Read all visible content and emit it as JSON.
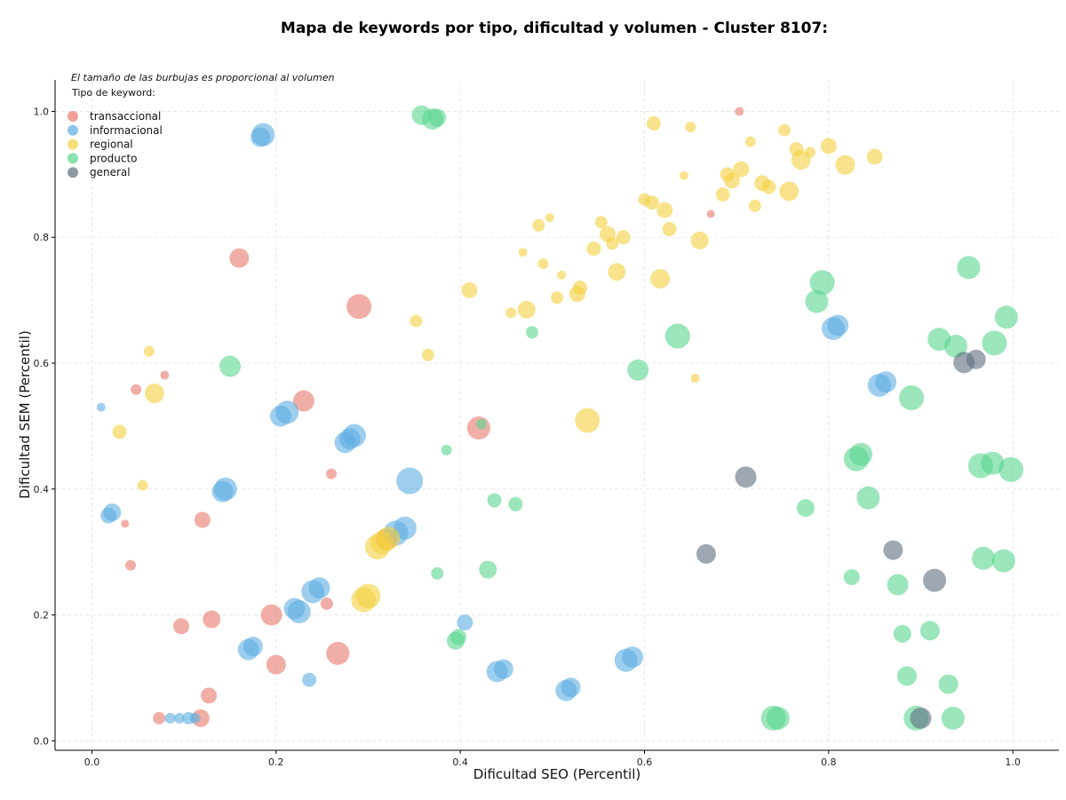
{
  "chart_data": {
    "type": "scatter",
    "title": "Mapa de keywords por tipo, dificultad y volumen - Cluster 8107:",
    "xlabel": "Dificultad SEO (Percentil)",
    "ylabel": "Dificultad SEM (Percentil)",
    "xlim": [
      -0.04,
      1.05
    ],
    "ylim": [
      -0.015,
      1.05
    ],
    "xticks": [
      0.0,
      0.2,
      0.4,
      0.6,
      0.8,
      1.0
    ],
    "yticks": [
      0.0,
      0.2,
      0.4,
      0.6,
      0.8,
      1.0
    ],
    "xtick_labels": [
      "0.0",
      "0.2",
      "0.4",
      "0.6",
      "0.8",
      "1.0"
    ],
    "ytick_labels": [
      "0.0",
      "0.2",
      "0.4",
      "0.6",
      "0.8",
      "1.0"
    ],
    "grid": true,
    "annotation": "El tamaño de las burbujas es proporcional al volumen",
    "legend_title": "Tipo de keyword:",
    "legend_position": "top-left",
    "series": [
      {
        "name": "transaccional",
        "color": "#e8786b",
        "points": [
          [
            0.16,
            0.767,
            22
          ],
          [
            0.29,
            0.69,
            28
          ],
          [
            0.23,
            0.54,
            24
          ],
          [
            0.048,
            0.558,
            12
          ],
          [
            0.079,
            0.581,
            10
          ],
          [
            0.036,
            0.345,
            9
          ],
          [
            0.042,
            0.279,
            12
          ],
          [
            0.12,
            0.351,
            18
          ],
          [
            0.26,
            0.424,
            12
          ],
          [
            0.255,
            0.218,
            14
          ],
          [
            0.13,
            0.193,
            20
          ],
          [
            0.097,
            0.182,
            18
          ],
          [
            0.195,
            0.2,
            24
          ],
          [
            0.2,
            0.121,
            22
          ],
          [
            0.267,
            0.139,
            26
          ],
          [
            0.127,
            0.072,
            18
          ],
          [
            0.073,
            0.036,
            14
          ],
          [
            0.118,
            0.036,
            20
          ],
          [
            0.42,
            0.497,
            26
          ],
          [
            0.703,
            1.0,
            10
          ],
          [
            0.672,
            0.837,
            9
          ],
          [
            0.32,
            0.32,
            24
          ]
        ]
      },
      {
        "name": "informacional",
        "color": "#5dade2",
        "points": [
          [
            0.186,
            0.963,
            26
          ],
          [
            0.183,
            0.959,
            22
          ],
          [
            0.01,
            0.53,
            10
          ],
          [
            0.022,
            0.363,
            20
          ],
          [
            0.018,
            0.358,
            18
          ],
          [
            0.142,
            0.396,
            24
          ],
          [
            0.145,
            0.4,
            26
          ],
          [
            0.205,
            0.516,
            24
          ],
          [
            0.212,
            0.522,
            26
          ],
          [
            0.28,
            0.48,
            24
          ],
          [
            0.285,
            0.485,
            26
          ],
          [
            0.275,
            0.474,
            24
          ],
          [
            0.345,
            0.413,
            30
          ],
          [
            0.33,
            0.33,
            28
          ],
          [
            0.34,
            0.338,
            26
          ],
          [
            0.24,
            0.237,
            26
          ],
          [
            0.247,
            0.243,
            24
          ],
          [
            0.22,
            0.21,
            24
          ],
          [
            0.225,
            0.205,
            26
          ],
          [
            0.17,
            0.145,
            24
          ],
          [
            0.175,
            0.15,
            22
          ],
          [
            0.236,
            0.097,
            16
          ],
          [
            0.405,
            0.188,
            18
          ],
          [
            0.44,
            0.11,
            24
          ],
          [
            0.447,
            0.114,
            22
          ],
          [
            0.515,
            0.08,
            24
          ],
          [
            0.52,
            0.085,
            22
          ],
          [
            0.58,
            0.128,
            26
          ],
          [
            0.587,
            0.133,
            24
          ],
          [
            0.805,
            0.655,
            26
          ],
          [
            0.81,
            0.66,
            24
          ],
          [
            0.855,
            0.565,
            26
          ],
          [
            0.862,
            0.57,
            24
          ],
          [
            0.085,
            0.036,
            12
          ],
          [
            0.095,
            0.036,
            12
          ],
          [
            0.105,
            0.036,
            14
          ],
          [
            0.112,
            0.036,
            12
          ]
        ]
      },
      {
        "name": "regional",
        "color": "#f4d03f",
        "points": [
          [
            0.61,
            0.981,
            16
          ],
          [
            0.65,
            0.975,
            12
          ],
          [
            0.715,
            0.952,
            12
          ],
          [
            0.752,
            0.97,
            14
          ],
          [
            0.765,
            0.94,
            16
          ],
          [
            0.77,
            0.923,
            22
          ],
          [
            0.78,
            0.935,
            12
          ],
          [
            0.8,
            0.945,
            18
          ],
          [
            0.818,
            0.915,
            22
          ],
          [
            0.85,
            0.928,
            18
          ],
          [
            0.705,
            0.908,
            18
          ],
          [
            0.69,
            0.9,
            16
          ],
          [
            0.695,
            0.89,
            18
          ],
          [
            0.728,
            0.886,
            18
          ],
          [
            0.735,
            0.88,
            16
          ],
          [
            0.757,
            0.873,
            22
          ],
          [
            0.643,
            0.898,
            10
          ],
          [
            0.685,
            0.868,
            16
          ],
          [
            0.72,
            0.85,
            14
          ],
          [
            0.6,
            0.86,
            14
          ],
          [
            0.608,
            0.855,
            16
          ],
          [
            0.622,
            0.843,
            18
          ],
          [
            0.497,
            0.831,
            10
          ],
          [
            0.485,
            0.819,
            14
          ],
          [
            0.553,
            0.824,
            14
          ],
          [
            0.56,
            0.805,
            18
          ],
          [
            0.565,
            0.79,
            14
          ],
          [
            0.577,
            0.8,
            16
          ],
          [
            0.627,
            0.813,
            16
          ],
          [
            0.66,
            0.795,
            20
          ],
          [
            0.545,
            0.782,
            16
          ],
          [
            0.468,
            0.776,
            10
          ],
          [
            0.49,
            0.758,
            12
          ],
          [
            0.51,
            0.74,
            10
          ],
          [
            0.57,
            0.745,
            20
          ],
          [
            0.617,
            0.734,
            22
          ],
          [
            0.53,
            0.72,
            16
          ],
          [
            0.527,
            0.71,
            18
          ],
          [
            0.41,
            0.716,
            18
          ],
          [
            0.472,
            0.685,
            20
          ],
          [
            0.455,
            0.68,
            12
          ],
          [
            0.505,
            0.704,
            14
          ],
          [
            0.352,
            0.667,
            14
          ],
          [
            0.365,
            0.613,
            14
          ],
          [
            0.655,
            0.576,
            10
          ],
          [
            0.062,
            0.619,
            12
          ],
          [
            0.068,
            0.552,
            22
          ],
          [
            0.03,
            0.491,
            16
          ],
          [
            0.055,
            0.406,
            12
          ],
          [
            0.538,
            0.509,
            28
          ],
          [
            0.31,
            0.308,
            28
          ],
          [
            0.3,
            0.23,
            28
          ],
          [
            0.295,
            0.224,
            28
          ],
          [
            0.322,
            0.322,
            26
          ],
          [
            0.315,
            0.315,
            26
          ]
        ]
      },
      {
        "name": "producto",
        "color": "#58d68d",
        "points": [
          [
            0.358,
            0.994,
            22
          ],
          [
            0.37,
            0.988,
            24
          ],
          [
            0.375,
            0.99,
            20
          ],
          [
            0.15,
            0.595,
            24
          ],
          [
            0.385,
            0.462,
            12
          ],
          [
            0.423,
            0.503,
            12
          ],
          [
            0.437,
            0.382,
            16
          ],
          [
            0.46,
            0.376,
            16
          ],
          [
            0.43,
            0.272,
            20
          ],
          [
            0.375,
            0.266,
            14
          ],
          [
            0.395,
            0.159,
            20
          ],
          [
            0.398,
            0.165,
            18
          ],
          [
            0.478,
            0.649,
            14
          ],
          [
            0.593,
            0.589,
            24
          ],
          [
            0.636,
            0.643,
            28
          ],
          [
            0.793,
            0.728,
            28
          ],
          [
            0.787,
            0.698,
            26
          ],
          [
            0.952,
            0.752,
            26
          ],
          [
            0.993,
            0.673,
            26
          ],
          [
            0.98,
            0.632,
            28
          ],
          [
            0.938,
            0.627,
            26
          ],
          [
            0.92,
            0.638,
            26
          ],
          [
            0.89,
            0.545,
            28
          ],
          [
            0.83,
            0.448,
            28
          ],
          [
            0.835,
            0.455,
            26
          ],
          [
            0.843,
            0.386,
            26
          ],
          [
            0.775,
            0.37,
            20
          ],
          [
            0.825,
            0.26,
            18
          ],
          [
            0.875,
            0.248,
            24
          ],
          [
            0.965,
            0.437,
            28
          ],
          [
            0.978,
            0.441,
            26
          ],
          [
            0.998,
            0.431,
            28
          ],
          [
            0.968,
            0.29,
            26
          ],
          [
            0.99,
            0.286,
            26
          ],
          [
            0.88,
            0.17,
            20
          ],
          [
            0.91,
            0.175,
            22
          ],
          [
            0.885,
            0.103,
            22
          ],
          [
            0.93,
            0.09,
            22
          ],
          [
            0.74,
            0.036,
            28
          ],
          [
            0.745,
            0.036,
            26
          ],
          [
            0.895,
            0.036,
            28
          ],
          [
            0.935,
            0.036,
            26
          ]
        ]
      },
      {
        "name": "general",
        "color": "#5d6d7e",
        "points": [
          [
            0.71,
            0.419,
            24
          ],
          [
            0.667,
            0.297,
            22
          ],
          [
            0.87,
            0.303,
            22
          ],
          [
            0.915,
            0.255,
            26
          ],
          [
            0.947,
            0.601,
            24
          ],
          [
            0.96,
            0.606,
            22
          ],
          [
            0.9,
            0.036,
            24
          ]
        ]
      }
    ]
  }
}
